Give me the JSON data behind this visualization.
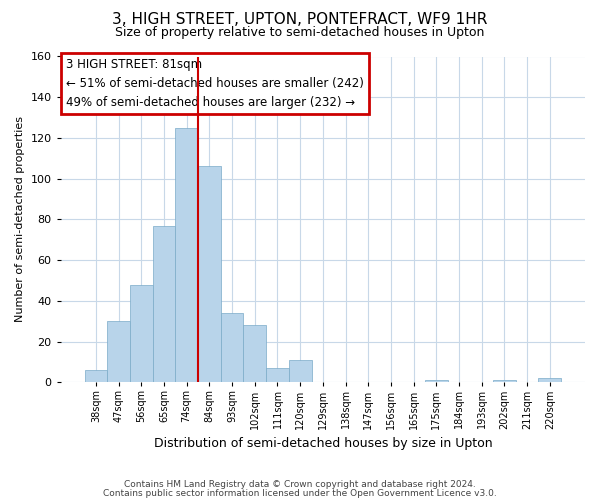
{
  "title": "3, HIGH STREET, UPTON, PONTEFRACT, WF9 1HR",
  "subtitle": "Size of property relative to semi-detached houses in Upton",
  "xlabel": "Distribution of semi-detached houses by size in Upton",
  "ylabel": "Number of semi-detached properties",
  "bin_labels": [
    "38sqm",
    "47sqm",
    "56sqm",
    "65sqm",
    "74sqm",
    "84sqm",
    "93sqm",
    "102sqm",
    "111sqm",
    "120sqm",
    "129sqm",
    "138sqm",
    "147sqm",
    "156sqm",
    "165sqm",
    "175sqm",
    "184sqm",
    "193sqm",
    "202sqm",
    "211sqm",
    "220sqm"
  ],
  "bar_values": [
    6,
    30,
    48,
    77,
    125,
    106,
    34,
    28,
    7,
    11,
    0,
    0,
    0,
    0,
    0,
    1,
    0,
    0,
    1,
    0,
    2
  ],
  "bar_color": "#b8d4ea",
  "bar_edge_color": "#7aaac8",
  "highlight_line_color": "#cc0000",
  "annotation_title": "3 HIGH STREET: 81sqm",
  "annotation_line1": "← 51% of semi-detached houses are smaller (242)",
  "annotation_line2": "49% of semi-detached houses are larger (232) →",
  "annotation_box_color": "#cc0000",
  "ylim": [
    0,
    160
  ],
  "yticks": [
    0,
    20,
    40,
    60,
    80,
    100,
    120,
    140,
    160
  ],
  "footer1": "Contains HM Land Registry data © Crown copyright and database right 2024.",
  "footer2": "Contains public sector information licensed under the Open Government Licence v3.0.",
  "background_color": "#ffffff",
  "grid_color": "#c8d8e8"
}
